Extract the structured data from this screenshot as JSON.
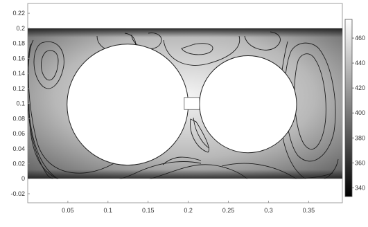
{
  "chart_data": {
    "type": "heatmap",
    "title": "",
    "xlabel": "",
    "ylabel": "",
    "xlim": [
      0.0,
      0.392
    ],
    "ylim": [
      -0.032,
      0.233
    ],
    "x_ticks": [
      "0.05",
      "0.1",
      "0.15",
      "0.2",
      "0.25",
      "0.3",
      "0.35"
    ],
    "y_ticks": [
      "-0.02",
      "0",
      "0.02",
      "0.04",
      "0.06",
      "0.08",
      "0.1",
      "0.12",
      "0.14",
      "0.16",
      "0.18",
      "0.2",
      "0.22"
    ],
    "domain_rect": {
      "x": [
        0.0,
        0.392
      ],
      "y": [
        0.0,
        0.2
      ]
    },
    "obstacles": [
      {
        "shape": "circle",
        "cx": 0.1245,
        "cy": 0.0985,
        "r": 0.0755
      },
      {
        "shape": "circle",
        "cx": 0.2745,
        "cy": 0.099,
        "r": 0.0605
      }
    ],
    "colorbar": {
      "min": 333,
      "max": 475,
      "colormap": "grayscale",
      "colors": [
        "#000000",
        "#ffffff"
      ],
      "ticks": [
        "340",
        "360",
        "380",
        "400",
        "420",
        "440",
        "460"
      ]
    },
    "grid": false,
    "overlay": "streamlines"
  }
}
